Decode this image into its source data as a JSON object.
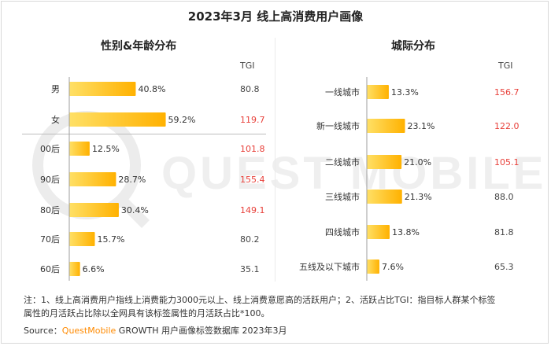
{
  "title": "2023年3月 线上高消费用户画像",
  "watermark_text": "QUEST MOBILE",
  "left_panel": {
    "title": "性别&年龄分布",
    "tgi_header": "TGI"
  },
  "right_panel": {
    "title": "城际分布",
    "tgi_header": "TGI"
  },
  "colors": {
    "bar_start": "#ffe066",
    "bar_end": "#ffb100",
    "tgi_high": "#e8403a",
    "tgi_normal": "#444444",
    "axis": "#9e9e9e"
  },
  "chart_data": [
    {
      "type": "bar",
      "orientation": "horizontal",
      "title": "性别&年龄分布",
      "value_unit": "%",
      "groups": [
        {
          "categories": [
            "男",
            "女"
          ],
          "values": [
            40.8,
            59.2
          ],
          "labels": [
            "40.8%",
            "59.2%"
          ],
          "tgi": [
            "80.8",
            "119.7"
          ]
        },
        {
          "categories": [
            "00后",
            "90后",
            "80后",
            "70后",
            "60后"
          ],
          "values": [
            12.5,
            28.7,
            30.4,
            15.7,
            6.6
          ],
          "labels": [
            "12.5%",
            "28.7%",
            "30.4%",
            "15.7%",
            "6.6%"
          ],
          "tgi": [
            "101.8",
            "155.4",
            "149.1",
            "80.2",
            "35.1"
          ]
        }
      ]
    },
    {
      "type": "bar",
      "orientation": "horizontal",
      "title": "城际分布",
      "value_unit": "%",
      "categories": [
        "一线城市",
        "新一线城市",
        "二线城市",
        "三线城市",
        "四线城市",
        "五线及以下城市"
      ],
      "values": [
        13.3,
        23.1,
        21.0,
        21.3,
        13.8,
        7.6
      ],
      "labels": [
        "13.3%",
        "23.1%",
        "21.0%",
        "21.3%",
        "13.8%",
        "7.6%"
      ],
      "tgi": [
        "156.7",
        "122.0",
        "105.1",
        "88.0",
        "81.8",
        "65.3"
      ]
    }
  ],
  "notes": {
    "line1": "注：1、线上高消费用户指线上消费能力3000元以上、线上消费意愿高的活跃用户；2、活跃占比TGI：指目标人群某个标签",
    "line2": "属性的月活跃占比除以全网具有该标签属性的月活跃占比*100。"
  },
  "source": {
    "prefix": "Source：",
    "brand": "QuestMobile",
    "text": " GROWTH 用户画像标签数据库 2023年3月"
  }
}
